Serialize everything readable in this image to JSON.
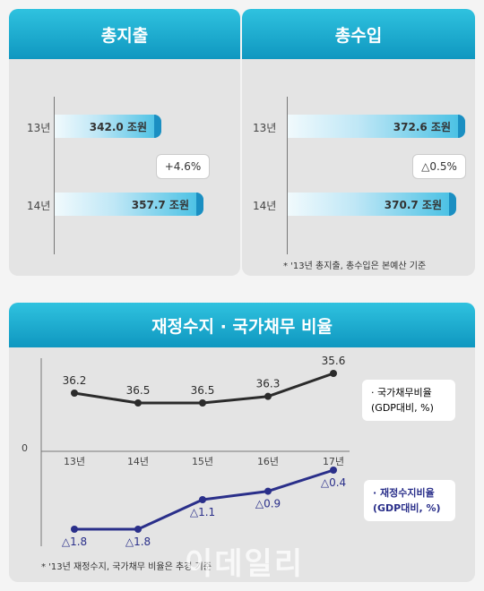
{
  "spending": {
    "title": "총지출",
    "rows": [
      {
        "year": "13년",
        "value": 342.0,
        "label": "342.0 조원"
      },
      {
        "year": "14년",
        "value": 357.7,
        "label": "357.7 조원"
      }
    ],
    "change": "+4.6%"
  },
  "revenue": {
    "title": "총수입",
    "rows": [
      {
        "year": "13년",
        "value": 372.6,
        "label": "372.6 조원"
      },
      {
        "year": "14년",
        "value": 370.7,
        "label": "370.7 조원"
      }
    ],
    "change": "△0.5%",
    "note": "* '13년 총지출, 총수입은 본예산 기준"
  },
  "ratio": {
    "title": "재정수지 · 국가채무 비율",
    "zero_label": "0",
    "note": "* '13년 재정수지, 국가채무 비율은 추경 기준",
    "legend_debt": [
      "· 국가채무비율",
      "(GDP대비, %)"
    ],
    "legend_balance": [
      "· 재정수지비율",
      "(GDP대비, %)"
    ]
  },
  "watermark": "이데일리",
  "chart_data": [
    {
      "type": "bar",
      "title": "총지출",
      "categories": [
        "13년",
        "14년"
      ],
      "values": [
        342.0,
        357.7
      ],
      "unit": "조원",
      "annotation": "+4.6%"
    },
    {
      "type": "bar",
      "title": "총수입",
      "categories": [
        "13년",
        "14년"
      ],
      "values": [
        372.6,
        370.7
      ],
      "unit": "조원",
      "annotation": "△0.5%"
    },
    {
      "type": "line",
      "title": "재정수지 · 국가채무 비율",
      "categories": [
        "13년",
        "14년",
        "15년",
        "16년",
        "17년"
      ],
      "series": [
        {
          "name": "국가채무비율",
          "values": [
            36.2,
            36.5,
            36.5,
            36.3,
            35.6
          ],
          "labels": [
            "36.2",
            "36.5",
            "36.5",
            "36.3",
            "35.6"
          ],
          "color": "#2b2b2b"
        },
        {
          "name": "재정수지비율",
          "values": [
            -1.8,
            -1.8,
            -1.1,
            -0.9,
            -0.4
          ],
          "labels": [
            "△1.8",
            "△1.8",
            "△1.1",
            "△0.9",
            "△0.4"
          ],
          "color": "#2a2f8a"
        }
      ]
    }
  ]
}
